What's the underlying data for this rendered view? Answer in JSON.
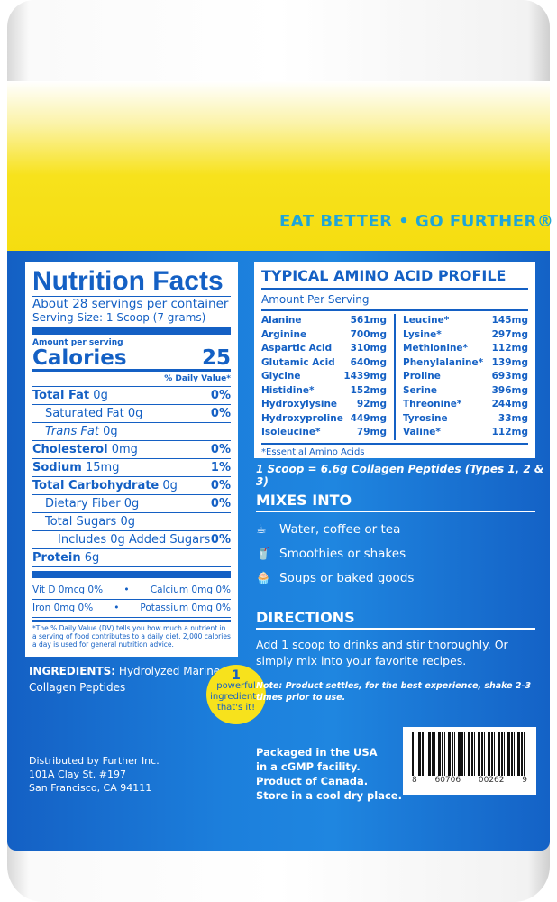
{
  "slogan": "EAT BETTER • GO FURTHER®",
  "nutrition": {
    "title": "Nutrition Facts",
    "servings": "About 28 servings per container",
    "serving_size": "Serving Size: 1 Scoop (7 grams)",
    "amount_per": "Amount per serving",
    "calories_label": "Calories",
    "calories": "25",
    "dv_header": "% Daily Value*",
    "rows": [
      {
        "label": "Total Fat",
        "amt": "0g",
        "dv": "0%",
        "bold": true,
        "indent": 0
      },
      {
        "label": "Saturated Fat",
        "amt": "0g",
        "dv": "0%",
        "indent": 1
      },
      {
        "label": "Trans Fat",
        "amt": "0g",
        "dv": "",
        "indent": 1
      },
      {
        "label": "Cholesterol",
        "amt": "0mg",
        "dv": "0%",
        "bold": true,
        "indent": 0
      },
      {
        "label": "Sodium",
        "amt": "15mg",
        "dv": "1%",
        "bold": true,
        "indent": 0
      },
      {
        "label": "Total Carbohydrate",
        "amt": "0g",
        "dv": "0%",
        "bold": true,
        "indent": 0
      },
      {
        "label": "Dietary Fiber",
        "amt": "0g",
        "dv": "0%",
        "indent": 1
      },
      {
        "label": "Total Sugars",
        "amt": "0g",
        "dv": "",
        "indent": 1
      },
      {
        "label": "Includes 0g Added Sugars",
        "amt": "",
        "dv": "0%",
        "indent": 2
      },
      {
        "label": "Protein",
        "amt": "6g",
        "dv": "",
        "bold": true,
        "indent": 0
      }
    ],
    "vitamins": [
      [
        "Vit D 0mcg 0%",
        "Calcium 0mg 0%"
      ],
      [
        "Iron 0mg 0%",
        "Potassium 0mg 0%"
      ]
    ],
    "footnote": "*The % Daily Value (DV) tells you how much a nutrient in a serving of food contributes to a daily diet. 2,000 calories a day is used for general nutrition advice."
  },
  "ingredients": {
    "label": "INGREDIENTS:",
    "text": "Hydrolyzed Marine Collagen Peptides"
  },
  "badge": {
    "num": "1",
    "text": "powerful ingredient - that's it!"
  },
  "distributor": [
    "Distributed by Further Inc.",
    "101A Clay St. #197",
    "San Francisco, CA 94111"
  ],
  "amino": {
    "title": "TYPICAL AMINO ACID PROFILE",
    "subtitle": "Amount Per Serving",
    "left": [
      [
        "Alanine",
        "561mg"
      ],
      [
        "Arginine",
        "700mg"
      ],
      [
        "Aspartic Acid",
        "310mg"
      ],
      [
        "Glutamic Acid",
        "640mg"
      ],
      [
        "Glycine",
        "1439mg"
      ],
      [
        "Histidine*",
        "152mg"
      ],
      [
        "Hydroxylysine",
        "92mg"
      ],
      [
        "Hydroxyproline",
        "449mg"
      ],
      [
        "Isoleucine*",
        "79mg"
      ]
    ],
    "right": [
      [
        "Leucine*",
        "145mg"
      ],
      [
        "Lysine*",
        "297mg"
      ],
      [
        "Methionine*",
        "112mg"
      ],
      [
        "Phenylalanine*",
        "139mg"
      ],
      [
        "Proline",
        "693mg"
      ],
      [
        "Serine",
        "396mg"
      ],
      [
        "Threonine*",
        "244mg"
      ],
      [
        "Tyrosine",
        "33mg"
      ],
      [
        "Valine*",
        "112mg"
      ]
    ],
    "footnote": "*Essential Amino Acids"
  },
  "scoop": "1 Scoop = 6.6g Collagen Peptides (Types 1, 2 & 3)",
  "mixes": {
    "title": "MIXES INTO",
    "items": [
      {
        "icon": "cup-icon",
        "text": "Water, coffee or tea"
      },
      {
        "icon": "smoothie-icon",
        "text": "Smoothies or shakes"
      },
      {
        "icon": "muffin-icon",
        "text": "Soups or baked goods"
      }
    ]
  },
  "directions": {
    "title": "DIRECTIONS",
    "text": "Add 1 scoop to drinks and stir thoroughly. Or simply mix into your favorite recipes.",
    "note": "Note: Product settles, for the best experience, shake 2-3 times prior to use."
  },
  "origin": [
    "Packaged in the USA",
    "in a cGMP facility.",
    "Product of Canada.",
    "Store in a cool dry place."
  ],
  "barcode": [
    "8",
    "60706",
    "00262",
    "9"
  ],
  "colors": {
    "blue": "#1c7fdc",
    "yellow": "#f7e21c",
    "slogan": "#1fa5d8"
  }
}
